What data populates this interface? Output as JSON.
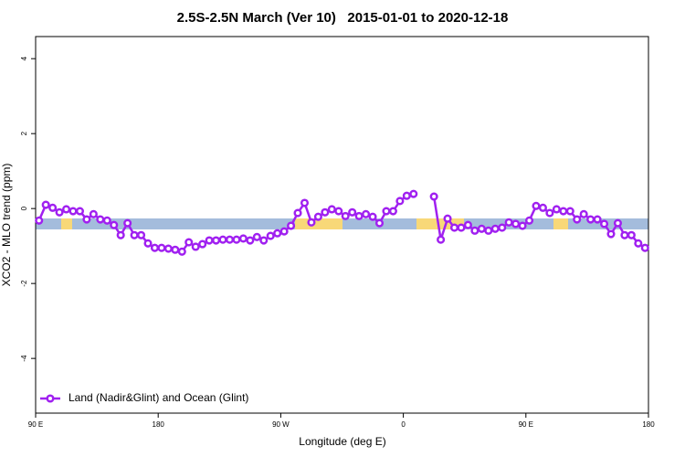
{
  "chart_data": {
    "type": "line",
    "title": "2.5S-2.5N March (Ver 10)   2015-01-01 to 2020-12-18",
    "x_label": "Longitude (deg E)",
    "y_label": "XCO2 - MLO trend (ppm)",
    "xlim": [
      90,
      540
    ],
    "ylim": [
      -5.46,
      4.59
    ],
    "xticks": [
      {
        "value": 90,
        "label": "90 E"
      },
      180,
      {
        "value": 270,
        "label": "90 W"
      },
      {
        "value": 360,
        "label": "0"
      },
      {
        "value": 450,
        "label": "90 E"
      },
      {
        "value": 540,
        "label": "180"
      }
    ],
    "yticks": [
      -4,
      -2,
      0,
      2,
      4
    ],
    "legend": "bottom-left",
    "x": [
      92.5,
      97.5,
      102.5,
      107.5,
      112.5,
      117.5,
      122.5,
      127.5,
      132.5,
      137.5,
      142.5,
      147.5,
      152.5,
      157.5,
      162.5,
      167.5,
      172.5,
      177.5,
      182.5,
      187.5,
      192.5,
      197.5,
      202.5,
      207.5,
      212.5,
      217.5,
      222.5,
      227.5,
      232.5,
      237.5,
      242.5,
      247.5,
      252.5,
      257.5,
      262.5,
      267.5,
      272.5,
      277.5,
      282.5,
      287.5,
      292.5,
      297.5,
      302.5,
      307.5,
      312.5,
      317.5,
      322.5,
      327.5,
      332.5,
      337.5,
      342.5,
      347.5,
      352.5,
      357.5,
      362.5,
      367.5,
      377.5,
      382.5,
      387.5,
      392.5,
      397.5,
      402.5,
      407.5,
      412.5,
      417.5,
      422.5,
      427.5,
      432.5,
      437.5,
      442.5,
      447.5,
      452.5,
      457.5,
      462.5,
      467.5,
      472.5,
      477.5,
      482.5,
      487.5,
      492.5,
      497.5,
      502.5,
      507.5,
      512.5,
      517.5,
      522.5,
      527.5,
      532.5,
      537.5
    ],
    "series": [
      {
        "name": "Land (Nadir&Glint) and Ocean (Glint)",
        "color": "#a020f0",
        "values": [
          -0.32,
          0.1,
          0.02,
          -0.1,
          -0.02,
          -0.07,
          -0.07,
          -0.29,
          -0.15,
          -0.29,
          -0.32,
          -0.44,
          -0.71,
          -0.39,
          -0.71,
          -0.71,
          -0.93,
          -1.05,
          -1.05,
          -1.07,
          -1.1,
          -1.15,
          -0.9,
          -1.02,
          -0.95,
          -0.85,
          -0.85,
          -0.83,
          -0.83,
          -0.83,
          -0.8,
          -0.85,
          -0.76,
          -0.85,
          -0.73,
          -0.66,
          -0.61,
          -0.46,
          -0.12,
          0.15,
          -0.37,
          -0.22,
          -0.1,
          -0.02,
          -0.07,
          -0.2,
          -0.1,
          -0.2,
          -0.15,
          -0.22,
          -0.39,
          -0.07,
          -0.07,
          0.2,
          0.34,
          0.39,
          null,
          0.32,
          -0.83,
          -0.27,
          -0.51,
          -0.51,
          -0.44,
          -0.59,
          -0.54,
          -0.59,
          -0.54,
          -0.51,
          -0.37,
          -0.41,
          -0.46,
          -0.32,
          0.07,
          0.02,
          -0.12,
          -0.02,
          -0.07,
          -0.07,
          -0.29,
          -0.15,
          -0.29,
          -0.29,
          -0.41,
          -0.68,
          -0.39,
          -0.71,
          -0.71,
          -0.93,
          -1.05
        ]
      }
    ]
  }
}
